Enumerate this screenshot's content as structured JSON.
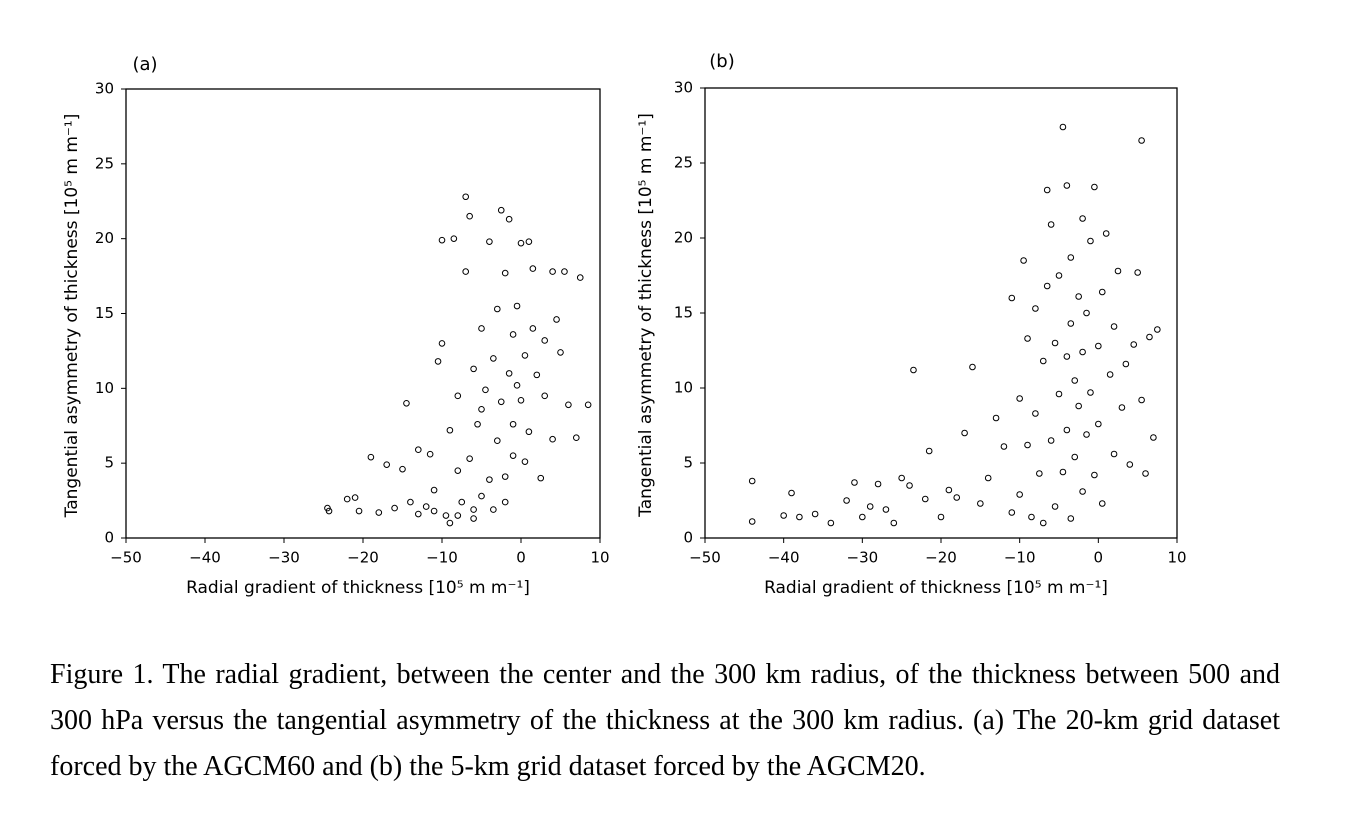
{
  "chart_data": [
    {
      "type": "scatter",
      "panel": "(a)",
      "xlabel": "Radial gradient of thickness [10⁵ m m⁻¹]",
      "ylabel": "Tangential asymmetry of thickness [10⁵ m m⁻¹]",
      "xlim": [
        -50,
        10
      ],
      "ylim": [
        0,
        30
      ],
      "xticks": [
        {
          "value": -50,
          "label": "−50"
        },
        {
          "value": -40,
          "label": "−40"
        },
        {
          "value": -30,
          "label": "−30"
        },
        {
          "value": -20,
          "label": "−20"
        },
        {
          "value": -10,
          "label": "−10"
        },
        0,
        10
      ],
      "yticks": [
        0,
        5,
        10,
        15,
        20,
        25,
        30
      ],
      "color": "#000000",
      "x": [
        -24.5,
        -24.3,
        -22,
        -21,
        -20.5,
        -19,
        -18,
        -17,
        -16,
        -15,
        -14.5,
        -14,
        -13,
        -13,
        -12,
        -11.5,
        -11,
        -10.5,
        -10,
        -10,
        -9.5,
        -9,
        -9,
        -8.5,
        -8,
        -8,
        -7.5,
        -7,
        -7,
        -6.5,
        -6.5,
        -6,
        -6,
        -5.5,
        -5,
        -5,
        -4.5,
        -4,
        -4,
        -3.5,
        -3,
        -3,
        -2.5,
        -2.5,
        -2,
        -2,
        -1.5,
        -1.5,
        -1,
        -1,
        -0.5,
        -0.5,
        0,
        0,
        0.5,
        0.5,
        1,
        1,
        1.5,
        1.5,
        2,
        2.5,
        3,
        3,
        4,
        4,
        4.5,
        5,
        5.5,
        6,
        7,
        7.5,
        8.5,
        -3.5,
        -6,
        -11,
        -8,
        -2,
        -5,
        -1
      ],
      "values": [
        2.0,
        1.8,
        2.6,
        2.7,
        1.8,
        5.4,
        1.7,
        4.9,
        2.0,
        4.6,
        9.0,
        2.4,
        5.9,
        1.6,
        2.1,
        5.6,
        3.2,
        11.8,
        13,
        19.9,
        1.5,
        7.2,
        1.0,
        20,
        4.5,
        9.5,
        2.4,
        22.8,
        17.8,
        21.5,
        5.3,
        11.3,
        1.9,
        7.6,
        14,
        2.8,
        9.9,
        19.8,
        3.9,
        12,
        15.3,
        6.5,
        21.9,
        9.1,
        17.7,
        4.1,
        21.3,
        11,
        13.6,
        7.6,
        10.2,
        15.5,
        9.2,
        19.7,
        5.1,
        12.2,
        19.8,
        7.1,
        14,
        18,
        10.9,
        4.0,
        9.5,
        13.2,
        17.8,
        6.6,
        14.6,
        12.4,
        17.8,
        8.9,
        6.7,
        17.4,
        8.9,
        1.9,
        1.3,
        1.8,
        1.5,
        2.4,
        8.6,
        5.5
      ]
    },
    {
      "type": "scatter",
      "panel": "(b)",
      "xlabel": "Radial gradient of thickness [10⁵ m m⁻¹]",
      "ylabel": "Tangential asymmetry of thickness [10⁵ m m⁻¹]",
      "xlim": [
        -50,
        10
      ],
      "ylim": [
        0,
        30
      ],
      "xticks": [
        {
          "value": -50,
          "label": "−50"
        },
        {
          "value": -40,
          "label": "−40"
        },
        {
          "value": -30,
          "label": "−30"
        },
        {
          "value": -20,
          "label": "−20"
        },
        {
          "value": -10,
          "label": "−10"
        },
        0,
        10
      ],
      "yticks": [
        0,
        5,
        10,
        15,
        20,
        25,
        30
      ],
      "color": "#000000",
      "x": [
        -44,
        -44,
        -40,
        -39,
        -38,
        -36,
        -34,
        -32,
        -31,
        -30,
        -29,
        -28,
        -27,
        -26,
        -25,
        -24,
        -23.5,
        -22,
        -21.5,
        -20,
        -19,
        -18,
        -17,
        -16,
        -15,
        -14,
        -13,
        -12,
        -11,
        -11,
        -10,
        -10,
        -9.5,
        -9,
        -9,
        -8.5,
        -8,
        -8,
        -7.5,
        -7,
        -7,
        -6.5,
        -6.5,
        -6,
        -6,
        -5.5,
        -5.5,
        -5,
        -5,
        -4.5,
        -4.5,
        -4,
        -4,
        -4,
        -3.5,
        -3.5,
        -3.5,
        -3,
        -3,
        -2.5,
        -2.5,
        -2,
        -2,
        -2,
        -1.5,
        -1.5,
        -1,
        -1,
        -0.5,
        -0.5,
        0,
        0,
        0.5,
        0.5,
        1,
        1.5,
        2,
        2,
        2.5,
        3,
        3.5,
        4,
        4.5,
        5,
        5.5,
        5.5,
        6,
        6.5,
        7,
        7.5
      ],
      "values": [
        3.8,
        1.1,
        1.5,
        3.0,
        1.4,
        1.6,
        1.0,
        2.5,
        3.7,
        1.4,
        2.1,
        3.6,
        1.9,
        1.0,
        4.0,
        3.5,
        11.2,
        2.6,
        5.8,
        1.4,
        3.2,
        2.7,
        7.0,
        11.4,
        2.3,
        4.0,
        8.0,
        6.1,
        1.7,
        16,
        9.3,
        2.9,
        18.5,
        13.3,
        6.2,
        1.4,
        8.3,
        15.3,
        4.3,
        11.8,
        1.0,
        23.2,
        16.8,
        6.5,
        20.9,
        13,
        2.1,
        9.6,
        17.5,
        27.4,
        4.4,
        23.5,
        12.1,
        7.2,
        18.7,
        14.3,
        1.3,
        10.5,
        5.4,
        16.1,
        8.8,
        21.3,
        12.4,
        3.1,
        6.9,
        15,
        19.8,
        9.7,
        23.4,
        4.2,
        12.8,
        7.6,
        16.4,
        2.3,
        20.3,
        10.9,
        5.6,
        14.1,
        17.8,
        8.7,
        11.6,
        4.9,
        12.9,
        17.7,
        26.5,
        9.2,
        4.3,
        13.4,
        6.7,
        13.9
      ]
    }
  ],
  "caption": "Figure 1. The radial gradient, between the center and the 300 km radius, of the thickness between 500 and 300 hPa versus the tangential asymmetry of the thickness at the 300 km radius. (a) The 20-km grid dataset forced by the AGCM60 and (b) the 5-km grid dataset forced by the AGCM20."
}
